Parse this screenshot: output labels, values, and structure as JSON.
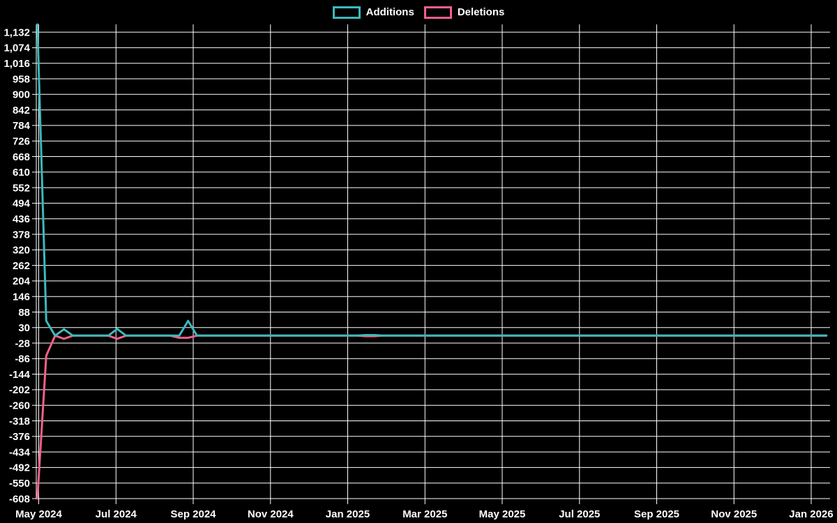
{
  "legend": {
    "items": [
      {
        "label": "Additions"
      },
      {
        "label": "Deletions"
      }
    ]
  },
  "chart_data": {
    "type": "line",
    "title": "",
    "background_color": "#000000",
    "grid": true,
    "gridline_color": "#ffffff",
    "text_color": "#ffffff",
    "legend_position": "top",
    "x_axis": {
      "unit": "week",
      "start_week": "2024-04-28",
      "interval_days": 7,
      "tick_labels": [
        "May 2024",
        "Jul 2024",
        "Sep 2024",
        "Nov 2024",
        "Jan 2025",
        "Mar 2025",
        "May 2025",
        "Jul 2025",
        "Sep 2025",
        "Nov 2025",
        "Jan 2026"
      ],
      "gridline_interval": "2 months"
    },
    "y_axis": {
      "min": -608,
      "max": 1161,
      "tick_step": 58,
      "tick_values": [
        1132,
        1074,
        1016,
        958,
        900,
        842,
        784,
        726,
        668,
        610,
        552,
        494,
        436,
        378,
        320,
        262,
        204,
        146,
        88,
        30,
        -28,
        -86,
        -144,
        -202,
        -260,
        -318,
        -376,
        -434,
        -492,
        -550,
        -608
      ],
      "tick_labels": [
        "1,132",
        "1,074",
        "1,016",
        "958",
        "900",
        "842",
        "784",
        "726",
        "668",
        "610",
        "552",
        "494",
        "436",
        "378",
        "320",
        "262",
        "204",
        "146",
        "88",
        "30",
        "-28",
        "-86",
        "-144",
        "-202",
        "-260",
        "-318",
        "-376",
        "-434",
        "-492",
        "-550",
        "-608"
      ]
    },
    "series": [
      {
        "name": "Additions",
        "color": "#3db9bd",
        "values": [
          1161,
          55,
          0,
          24,
          0,
          0,
          0,
          0,
          0,
          25,
          0,
          0,
          0,
          0,
          0,
          0,
          0,
          55,
          0,
          0,
          0,
          0,
          0,
          0,
          0,
          0,
          0,
          0,
          0,
          0,
          0,
          0,
          0,
          0,
          0,
          0,
          0,
          2,
          2,
          0,
          0,
          0,
          0,
          0,
          0,
          0,
          0,
          0,
          0,
          0,
          0,
          0,
          0,
          0,
          0,
          0,
          0,
          0,
          0,
          0,
          0,
          0,
          0,
          0,
          0,
          0,
          0,
          0,
          0,
          0,
          0,
          0,
          0,
          0,
          0,
          0,
          0,
          0,
          0,
          0,
          0,
          0,
          0,
          0,
          0,
          0,
          0,
          0,
          0,
          0
        ]
      },
      {
        "name": "Deletions",
        "color": "#f4608a",
        "values": [
          -608,
          -75,
          0,
          -12,
          0,
          0,
          0,
          0,
          0,
          -12,
          0,
          0,
          0,
          0,
          0,
          0,
          -8,
          -8,
          0,
          0,
          0,
          0,
          0,
          0,
          0,
          0,
          0,
          0,
          0,
          0,
          0,
          0,
          0,
          0,
          0,
          0,
          0,
          -2,
          -2,
          0,
          0,
          0,
          0,
          0,
          0,
          0,
          0,
          0,
          0,
          0,
          0,
          0,
          0,
          0,
          0,
          0,
          0,
          0,
          0,
          0,
          0,
          0,
          0,
          0,
          0,
          0,
          0,
          0,
          0,
          0,
          0,
          0,
          0,
          0,
          0,
          0,
          0,
          0,
          0,
          0,
          0,
          0,
          0,
          0,
          0,
          0,
          0,
          0,
          0,
          0
        ]
      }
    ]
  }
}
